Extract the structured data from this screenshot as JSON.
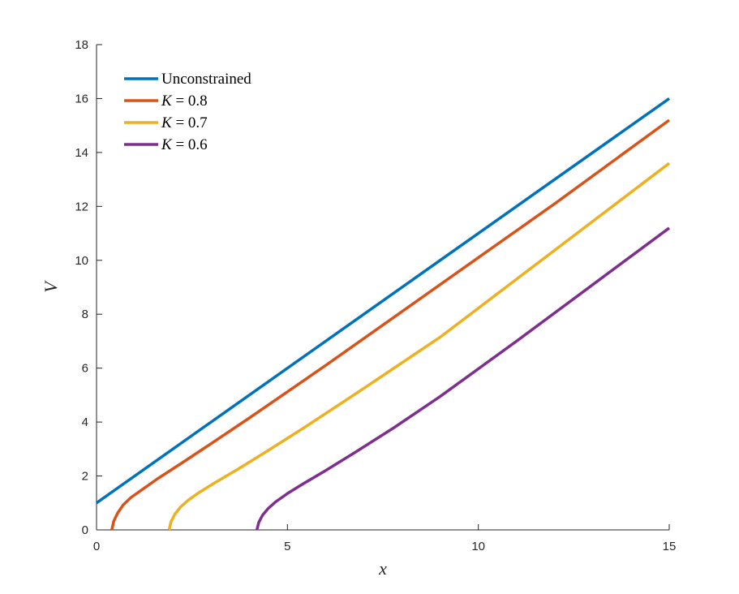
{
  "chart_data": {
    "type": "line",
    "xlabel": "x",
    "ylabel": "V",
    "xlim": [
      0,
      15
    ],
    "ylim": [
      0,
      18
    ],
    "xticks": [
      0,
      5,
      10,
      15
    ],
    "yticks": [
      0,
      2,
      4,
      6,
      8,
      10,
      12,
      14,
      16,
      18
    ],
    "grid": false,
    "legend_position": "top-left",
    "series": [
      {
        "name": "Unconstrained",
        "label_parts": [
          "Unconstrained"
        ],
        "color": "#0072BD",
        "x": [
          0,
          15
        ],
        "y": [
          1,
          16
        ]
      },
      {
        "name": "K = 0.8",
        "label_parts": [
          "K",
          " = 0.8"
        ],
        "color": "#D95319",
        "x": [
          0.4,
          0.45,
          0.55,
          0.7,
          0.9,
          1.2,
          1.6,
          2.2,
          3,
          4,
          6,
          8,
          10,
          12,
          15
        ],
        "y": [
          0,
          0.32,
          0.62,
          0.93,
          1.2,
          1.5,
          1.9,
          2.45,
          3.2,
          4.15,
          6.1,
          8.1,
          10.1,
          12.1,
          15.2
        ]
      },
      {
        "name": "K = 0.7",
        "label_parts": [
          "K",
          " = 0.7"
        ],
        "color": "#EDB120",
        "x": [
          1.9,
          1.95,
          2.05,
          2.2,
          2.4,
          2.7,
          3.1,
          3.7,
          4.5,
          5.5,
          7,
          9,
          11,
          13,
          15
        ],
        "y": [
          0,
          0.3,
          0.58,
          0.85,
          1.1,
          1.4,
          1.75,
          2.25,
          2.95,
          3.85,
          5.25,
          7.15,
          9.3,
          11.45,
          13.6
        ]
      },
      {
        "name": "K = 0.6",
        "label_parts": [
          "K",
          " = 0.6"
        ],
        "color": "#7E2F8E",
        "x": [
          4.2,
          4.25,
          4.35,
          4.5,
          4.7,
          5,
          5.4,
          6,
          6.8,
          7.8,
          9,
          11,
          13,
          15
        ],
        "y": [
          0,
          0.28,
          0.55,
          0.8,
          1.05,
          1.35,
          1.7,
          2.2,
          2.9,
          3.8,
          4.95,
          7.0,
          9.1,
          11.2
        ]
      }
    ]
  }
}
